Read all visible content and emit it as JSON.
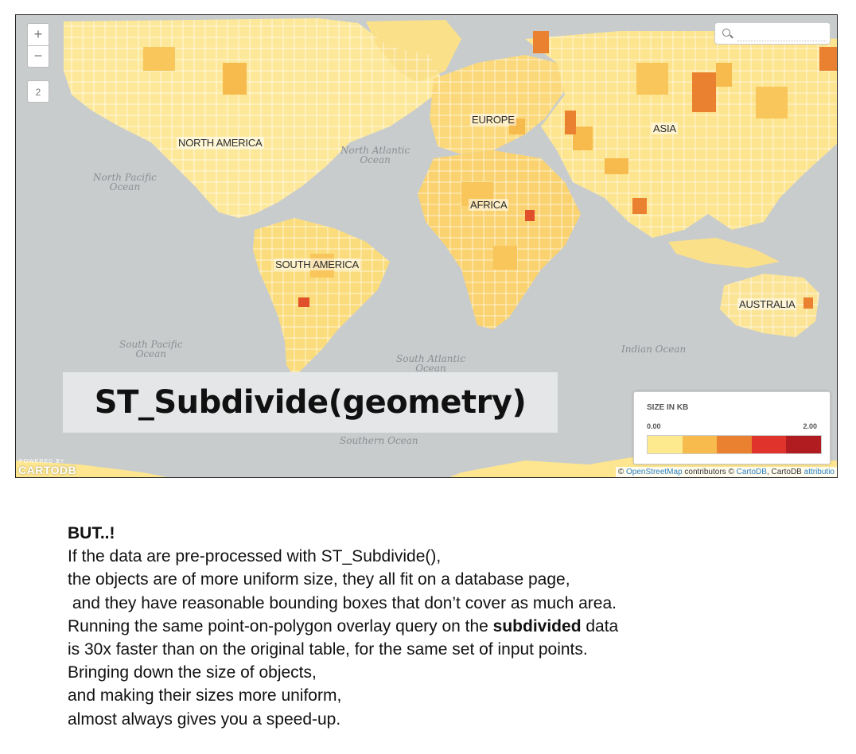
{
  "map": {
    "zoom_in_label": "+",
    "zoom_out_label": "−",
    "zoom_level": "2",
    "search_icon": "search-icon",
    "search_placeholder": "",
    "continents": {
      "north_america": "NORTH AMERICA",
      "south_america": "SOUTH AMERICA",
      "europe": "EUROPE",
      "africa": "AFRICA",
      "asia": "ASIA",
      "australia": "AUSTRALIA"
    },
    "oceans": {
      "north_atlantic_1": "North Atlantic",
      "north_atlantic_2": "Ocean",
      "north_pacific_1": "North Pacific",
      "north_pacific_2": "Ocean",
      "south_pacific_1": "South Pacific",
      "south_pacific_2": "Ocean",
      "south_atlantic_1": "South Atlantic",
      "south_atlantic_2": "Ocean",
      "indian": "Indian Ocean",
      "southern": "Southern Ocean"
    },
    "overlay_title": "ST_Subdivide(geometry)",
    "legend": {
      "title": "SIZE IN KB",
      "min": "0.00",
      "max": "2.00",
      "colors": [
        "#fde98e",
        "#f6bb4c",
        "#ea8130",
        "#e0332b",
        "#b11c20"
      ]
    },
    "powered_by": "POWERED BY",
    "brand": "CARTODB",
    "attribution": {
      "prefix": "© ",
      "osm": "OpenStreetMap",
      "mid": " contributors © ",
      "cartodb": "CartoDB",
      "sep": ", CartoDB ",
      "attribution_link": "attributio"
    },
    "colors": {
      "water": "#c9cccd",
      "land_light": "#fdeea4",
      "land_mid": "#f8cf63",
      "land_dark": "#ee9a3d",
      "land_red": "#e0502b"
    }
  },
  "text": {
    "heading": "BUT..!",
    "line1": "If the data are pre-processed with ST_Subdivide(),",
    "line2": "the objects are of more uniform size, they all fit on a database page,",
    "line3": " and they have reasonable bounding boxes that don’t cover as much area.",
    "line4_pre": "Running the same point-on-polygon overlay query on the ",
    "line4_bold": "subdivided",
    "line4_post": " data",
    "line5": "is 30x faster than on the original table, for the same set of input points.",
    "line6": "Bringing down the size of objects,",
    "line7": "and making their sizes more uniform,",
    "line8": "almost always gives you a speed-up."
  }
}
